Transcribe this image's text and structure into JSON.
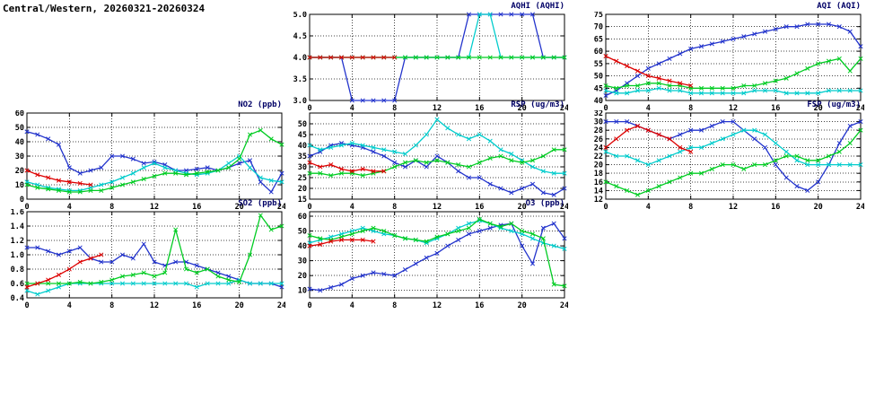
{
  "page": {
    "title": "Central/Western, 20260321-20260324"
  },
  "colors": {
    "red": "#dd0000",
    "green": "#00cc22",
    "cyan": "#00cccc",
    "blue": "#2233cc",
    "grid": "#444444",
    "border": "#000000",
    "chart_title": "#000066"
  },
  "chart_data": [
    {
      "id": "aqhi",
      "type": "line",
      "title": "AQHI (AQHI)",
      "xlim": [
        0,
        24
      ],
      "xticks": [
        0,
        4,
        8,
        12,
        16,
        20,
        24
      ],
      "ylim": [
        3.0,
        5.0
      ],
      "yticks": [
        3.0,
        3.5,
        4.0,
        4.5,
        5.0
      ],
      "ydec": 1,
      "series": [
        {
          "name": "day4",
          "color": "blue",
          "values": [
            4,
            4,
            4,
            4,
            3,
            3,
            3,
            3,
            3,
            4,
            4,
            4,
            4,
            4,
            4,
            5,
            5,
            5,
            5,
            5,
            5,
            5,
            4,
            4,
            4
          ]
        },
        {
          "name": "day3",
          "color": "cyan",
          "values": [
            4,
            4,
            4,
            4,
            4,
            4,
            4,
            4,
            4,
            4,
            4,
            4,
            4,
            4,
            4,
            4,
            5,
            5,
            4,
            4,
            4,
            4,
            4,
            4,
            4
          ]
        },
        {
          "name": "day2",
          "color": "green",
          "values": [
            4,
            4,
            4,
            4,
            4,
            4,
            4,
            4,
            4,
            4,
            4,
            4,
            4,
            4,
            4,
            4,
            4,
            4,
            4,
            4,
            4,
            4,
            4,
            4,
            4
          ]
        },
        {
          "name": "day1",
          "color": "red",
          "values": [
            4,
            4,
            4,
            4,
            4,
            4,
            4,
            4,
            4
          ]
        }
      ]
    },
    {
      "id": "aqi",
      "type": "line",
      "title": "AQI (AQI)",
      "xlim": [
        0,
        24
      ],
      "xticks": [
        0,
        4,
        8,
        12,
        16,
        20,
        24
      ],
      "ylim": [
        40,
        75
      ],
      "yticks": [
        40,
        45,
        50,
        55,
        60,
        65,
        70,
        75
      ],
      "ydec": 0,
      "series": [
        {
          "name": "day4",
          "color": "blue",
          "values": [
            42,
            44,
            47,
            50,
            53,
            55,
            57,
            59,
            61,
            62,
            63,
            64,
            65,
            66,
            67,
            68,
            69,
            70,
            70,
            71,
            71,
            71,
            70,
            68,
            62
          ]
        },
        {
          "name": "day3",
          "color": "cyan",
          "values": [
            44,
            43,
            43,
            44,
            44,
            45,
            44,
            44,
            43,
            43,
            43,
            43,
            43,
            43,
            44,
            44,
            44,
            43,
            43,
            43,
            43,
            44,
            44,
            44,
            44
          ]
        },
        {
          "name": "day2",
          "color": "green",
          "values": [
            46,
            45,
            46,
            46,
            47,
            47,
            46,
            46,
            45,
            45,
            45,
            45,
            45,
            46,
            46,
            47,
            48,
            49,
            51,
            53,
            55,
            56,
            57,
            52,
            57
          ]
        },
        {
          "name": "day1",
          "color": "red",
          "values": [
            58,
            56,
            54,
            52,
            50,
            49,
            48,
            47,
            46
          ]
        }
      ]
    },
    {
      "id": "no2",
      "type": "line",
      "title": "NO2 (ppb)",
      "xlim": [
        0,
        24
      ],
      "xticks": [
        0,
        4,
        8,
        12,
        16,
        20,
        24
      ],
      "ylim": [
        0,
        60
      ],
      "yticks": [
        0,
        10,
        20,
        30,
        40,
        50,
        60
      ],
      "ydec": 0,
      "series": [
        {
          "name": "day4",
          "color": "blue",
          "values": [
            47,
            45,
            42,
            38,
            22,
            18,
            20,
            22,
            30,
            30,
            28,
            25,
            26,
            24,
            20,
            20,
            21,
            22,
            20,
            22,
            25,
            27,
            12,
            5,
            18
          ]
        },
        {
          "name": "day3",
          "color": "cyan",
          "values": [
            12,
            10,
            8,
            7,
            6,
            6,
            8,
            10,
            12,
            15,
            18,
            22,
            25,
            22,
            20,
            18,
            17,
            18,
            20,
            25,
            30,
            22,
            15,
            13,
            12
          ]
        },
        {
          "name": "day2",
          "color": "green",
          "values": [
            10,
            8,
            7,
            6,
            5,
            5,
            6,
            6,
            8,
            10,
            12,
            14,
            16,
            18,
            18,
            17,
            18,
            19,
            20,
            22,
            28,
            45,
            48,
            42,
            38
          ]
        },
        {
          "name": "day1",
          "color": "red",
          "values": [
            20,
            17,
            15,
            13,
            12,
            11,
            10
          ]
        }
      ]
    },
    {
      "id": "rsp",
      "type": "line",
      "title": "RSP (ug/m3)",
      "xlim": [
        0,
        24
      ],
      "xticks": [
        0,
        4,
        8,
        12,
        16,
        20,
        24
      ],
      "ylim": [
        15,
        55
      ],
      "yticks": [
        15,
        20,
        25,
        30,
        35,
        40,
        45,
        50
      ],
      "ydec": 0,
      "series": [
        {
          "name": "day4",
          "color": "blue",
          "values": [
            35,
            37,
            40,
            41,
            40,
            39,
            37,
            35,
            32,
            30,
            33,
            30,
            35,
            32,
            28,
            25,
            25,
            22,
            20,
            18,
            20,
            22,
            18,
            17,
            20
          ]
        },
        {
          "name": "day3",
          "color": "cyan",
          "values": [
            40,
            38,
            39,
            40,
            41,
            40,
            39,
            38,
            37,
            36,
            40,
            45,
            52,
            48,
            45,
            43,
            45,
            42,
            38,
            36,
            33,
            30,
            28,
            27,
            27
          ]
        },
        {
          "name": "day2",
          "color": "green",
          "values": [
            27,
            27,
            26,
            27,
            27,
            26,
            27,
            28,
            30,
            32,
            33,
            32,
            33,
            32,
            31,
            30,
            32,
            34,
            35,
            33,
            32,
            33,
            35,
            38,
            38
          ]
        },
        {
          "name": "day1",
          "color": "red",
          "values": [
            32,
            30,
            31,
            29,
            28,
            29,
            28,
            28
          ]
        }
      ]
    },
    {
      "id": "fsp",
      "type": "line",
      "title": "FSP (ug/m3)",
      "xlim": [
        0,
        24
      ],
      "xticks": [
        0,
        4,
        8,
        12,
        16,
        20,
        24
      ],
      "ylim": [
        12,
        32
      ],
      "yticks": [
        12,
        14,
        16,
        18,
        20,
        22,
        24,
        26,
        28,
        30,
        32
      ],
      "ydec": 0,
      "series": [
        {
          "name": "day4",
          "color": "blue",
          "values": [
            30,
            30,
            30,
            29,
            28,
            27,
            26,
            27,
            28,
            28,
            29,
            30,
            30,
            28,
            26,
            24,
            20,
            17,
            15,
            14,
            16,
            20,
            25,
            29,
            30
          ]
        },
        {
          "name": "day3",
          "color": "cyan",
          "values": [
            23,
            22,
            22,
            21,
            20,
            21,
            22,
            23,
            24,
            24,
            25,
            26,
            27,
            28,
            28,
            27,
            25,
            23,
            21,
            20,
            20,
            20,
            20,
            20,
            20
          ]
        },
        {
          "name": "day2",
          "color": "green",
          "values": [
            16,
            15,
            14,
            13,
            14,
            15,
            16,
            17,
            18,
            18,
            19,
            20,
            20,
            19,
            20,
            20,
            21,
            22,
            22,
            21,
            21,
            22,
            23,
            25,
            28
          ]
        },
        {
          "name": "day1",
          "color": "red",
          "values": [
            24,
            26,
            28,
            29,
            28,
            27,
            26,
            24,
            23
          ]
        }
      ]
    },
    {
      "id": "so2",
      "type": "line",
      "title": "SO2 (ppb)",
      "xlim": [
        0,
        24
      ],
      "xticks": [
        0,
        4,
        8,
        12,
        16,
        20,
        24
      ],
      "ylim": [
        0.4,
        1.6
      ],
      "yticks": [
        0.4,
        0.6,
        0.8,
        1.0,
        1.2,
        1.4,
        1.6
      ],
      "ydec": 1,
      "series": [
        {
          "name": "day4",
          "color": "blue",
          "values": [
            1.1,
            1.1,
            1.05,
            1.0,
            1.05,
            1.1,
            0.95,
            0.9,
            0.9,
            1.0,
            0.95,
            1.15,
            0.9,
            0.85,
            0.9,
            0.9,
            0.85,
            0.8,
            0.75,
            0.7,
            0.65,
            0.6,
            0.6,
            0.6,
            0.55
          ]
        },
        {
          "name": "day3",
          "color": "cyan",
          "values": [
            0.5,
            0.45,
            0.5,
            0.55,
            0.6,
            0.6,
            0.6,
            0.6,
            0.6,
            0.6,
            0.6,
            0.6,
            0.6,
            0.6,
            0.6,
            0.6,
            0.55,
            0.6,
            0.6,
            0.6,
            0.65,
            0.6,
            0.6,
            0.6,
            0.6
          ]
        },
        {
          "name": "day2",
          "color": "green",
          "values": [
            0.6,
            0.6,
            0.6,
            0.6,
            0.6,
            0.62,
            0.6,
            0.62,
            0.65,
            0.7,
            0.72,
            0.75,
            0.7,
            0.75,
            1.35,
            0.8,
            0.75,
            0.8,
            0.7,
            0.65,
            0.62,
            1.0,
            1.55,
            1.35,
            1.4
          ]
        },
        {
          "name": "day1",
          "color": "red",
          "values": [
            0.55,
            0.6,
            0.65,
            0.72,
            0.8,
            0.9,
            0.95,
            1.0
          ]
        }
      ]
    },
    {
      "id": "o3",
      "type": "line",
      "title": "O3 (ppb)",
      "xlim": [
        0,
        24
      ],
      "xticks": [
        0,
        4,
        8,
        12,
        16,
        20,
        24
      ],
      "ylim": [
        5,
        63
      ],
      "yticks": [
        10,
        20,
        30,
        40,
        50,
        60
      ],
      "ydec": 0,
      "series": [
        {
          "name": "day4",
          "color": "blue",
          "values": [
            11,
            10,
            12,
            14,
            18,
            20,
            22,
            21,
            20,
            24,
            28,
            32,
            35,
            40,
            44,
            48,
            50,
            52,
            54,
            55,
            40,
            28,
            52,
            55,
            45
          ]
        },
        {
          "name": "day3",
          "color": "cyan",
          "values": [
            42,
            44,
            46,
            48,
            50,
            52,
            50,
            48,
            47,
            45,
            44,
            42,
            45,
            48,
            52,
            55,
            57,
            55,
            52,
            50,
            48,
            45,
            42,
            40,
            38
          ]
        },
        {
          "name": "day2",
          "color": "green",
          "values": [
            47,
            45,
            44,
            46,
            48,
            50,
            52,
            50,
            47,
            45,
            44,
            43,
            46,
            48,
            50,
            52,
            58,
            55,
            53,
            55,
            50,
            48,
            45,
            14,
            13
          ]
        },
        {
          "name": "day1",
          "color": "red",
          "values": [
            40,
            41,
            43,
            44,
            44,
            44,
            43
          ]
        }
      ]
    }
  ]
}
